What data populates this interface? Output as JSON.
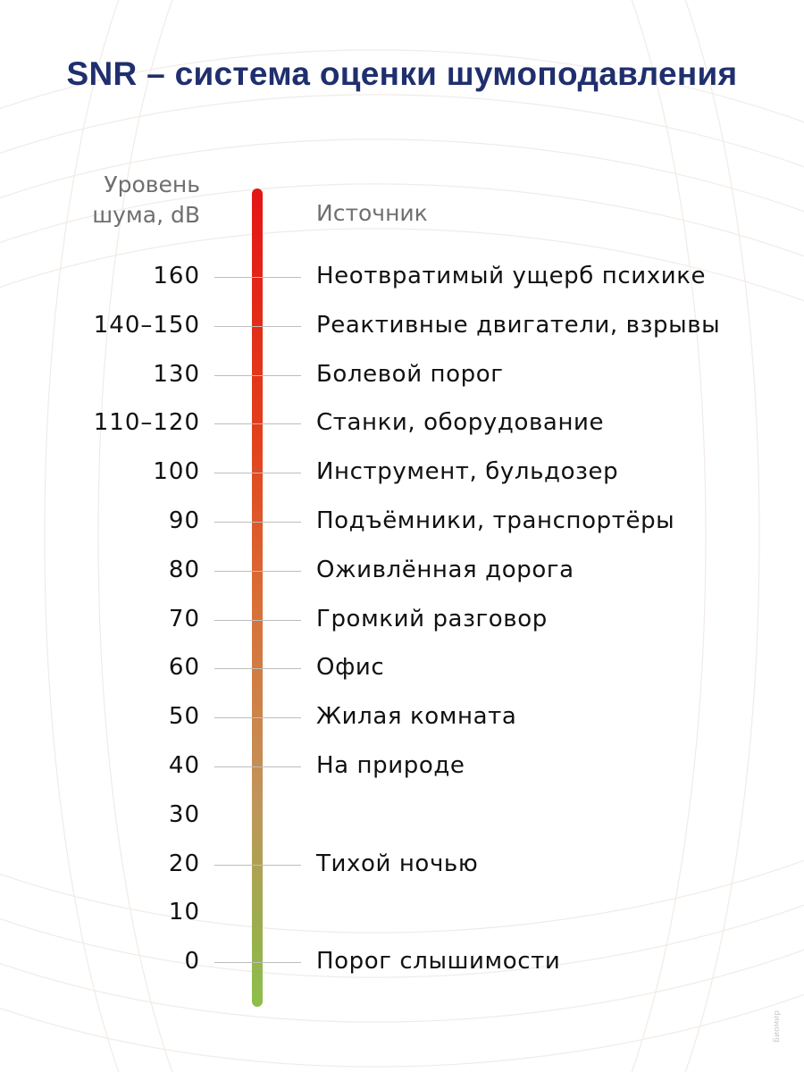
{
  "title": "SNR – система оценки шумоподавления",
  "headers": {
    "level_line1": "Уровень",
    "level_line2": "шума, dB",
    "source": "Источник"
  },
  "rows": [
    {
      "level": "160",
      "source": "Неотвратимый ущерб психике"
    },
    {
      "level": "140–150",
      "source": "Реактивные двигатели, взрывы"
    },
    {
      "level": "130",
      "source": "Болевой порог"
    },
    {
      "level": "110–120",
      "source": "Станки, оборудование"
    },
    {
      "level": "100",
      "source": "Инструмент, бульдозер"
    },
    {
      "level": "90",
      "source": "Подъёмники, транспортёры"
    },
    {
      "level": "80",
      "source": "Оживлённая дорога"
    },
    {
      "level": "70",
      "source": "Громкий разговор"
    },
    {
      "level": "60",
      "source": "Офис"
    },
    {
      "level": "50",
      "source": "Жилая комната"
    },
    {
      "level": "40",
      "source": "На природе"
    },
    {
      "level": "30",
      "source": ""
    },
    {
      "level": "20",
      "source": "Тихой ночью"
    },
    {
      "level": "10",
      "source": ""
    },
    {
      "level": "0",
      "source": "Порог слышимости"
    }
  ],
  "watermark": "Биомир",
  "colors": {
    "title": "#1f2f6e",
    "scale_top": "#e31515",
    "scale_bottom": "#8ebf4a"
  }
}
